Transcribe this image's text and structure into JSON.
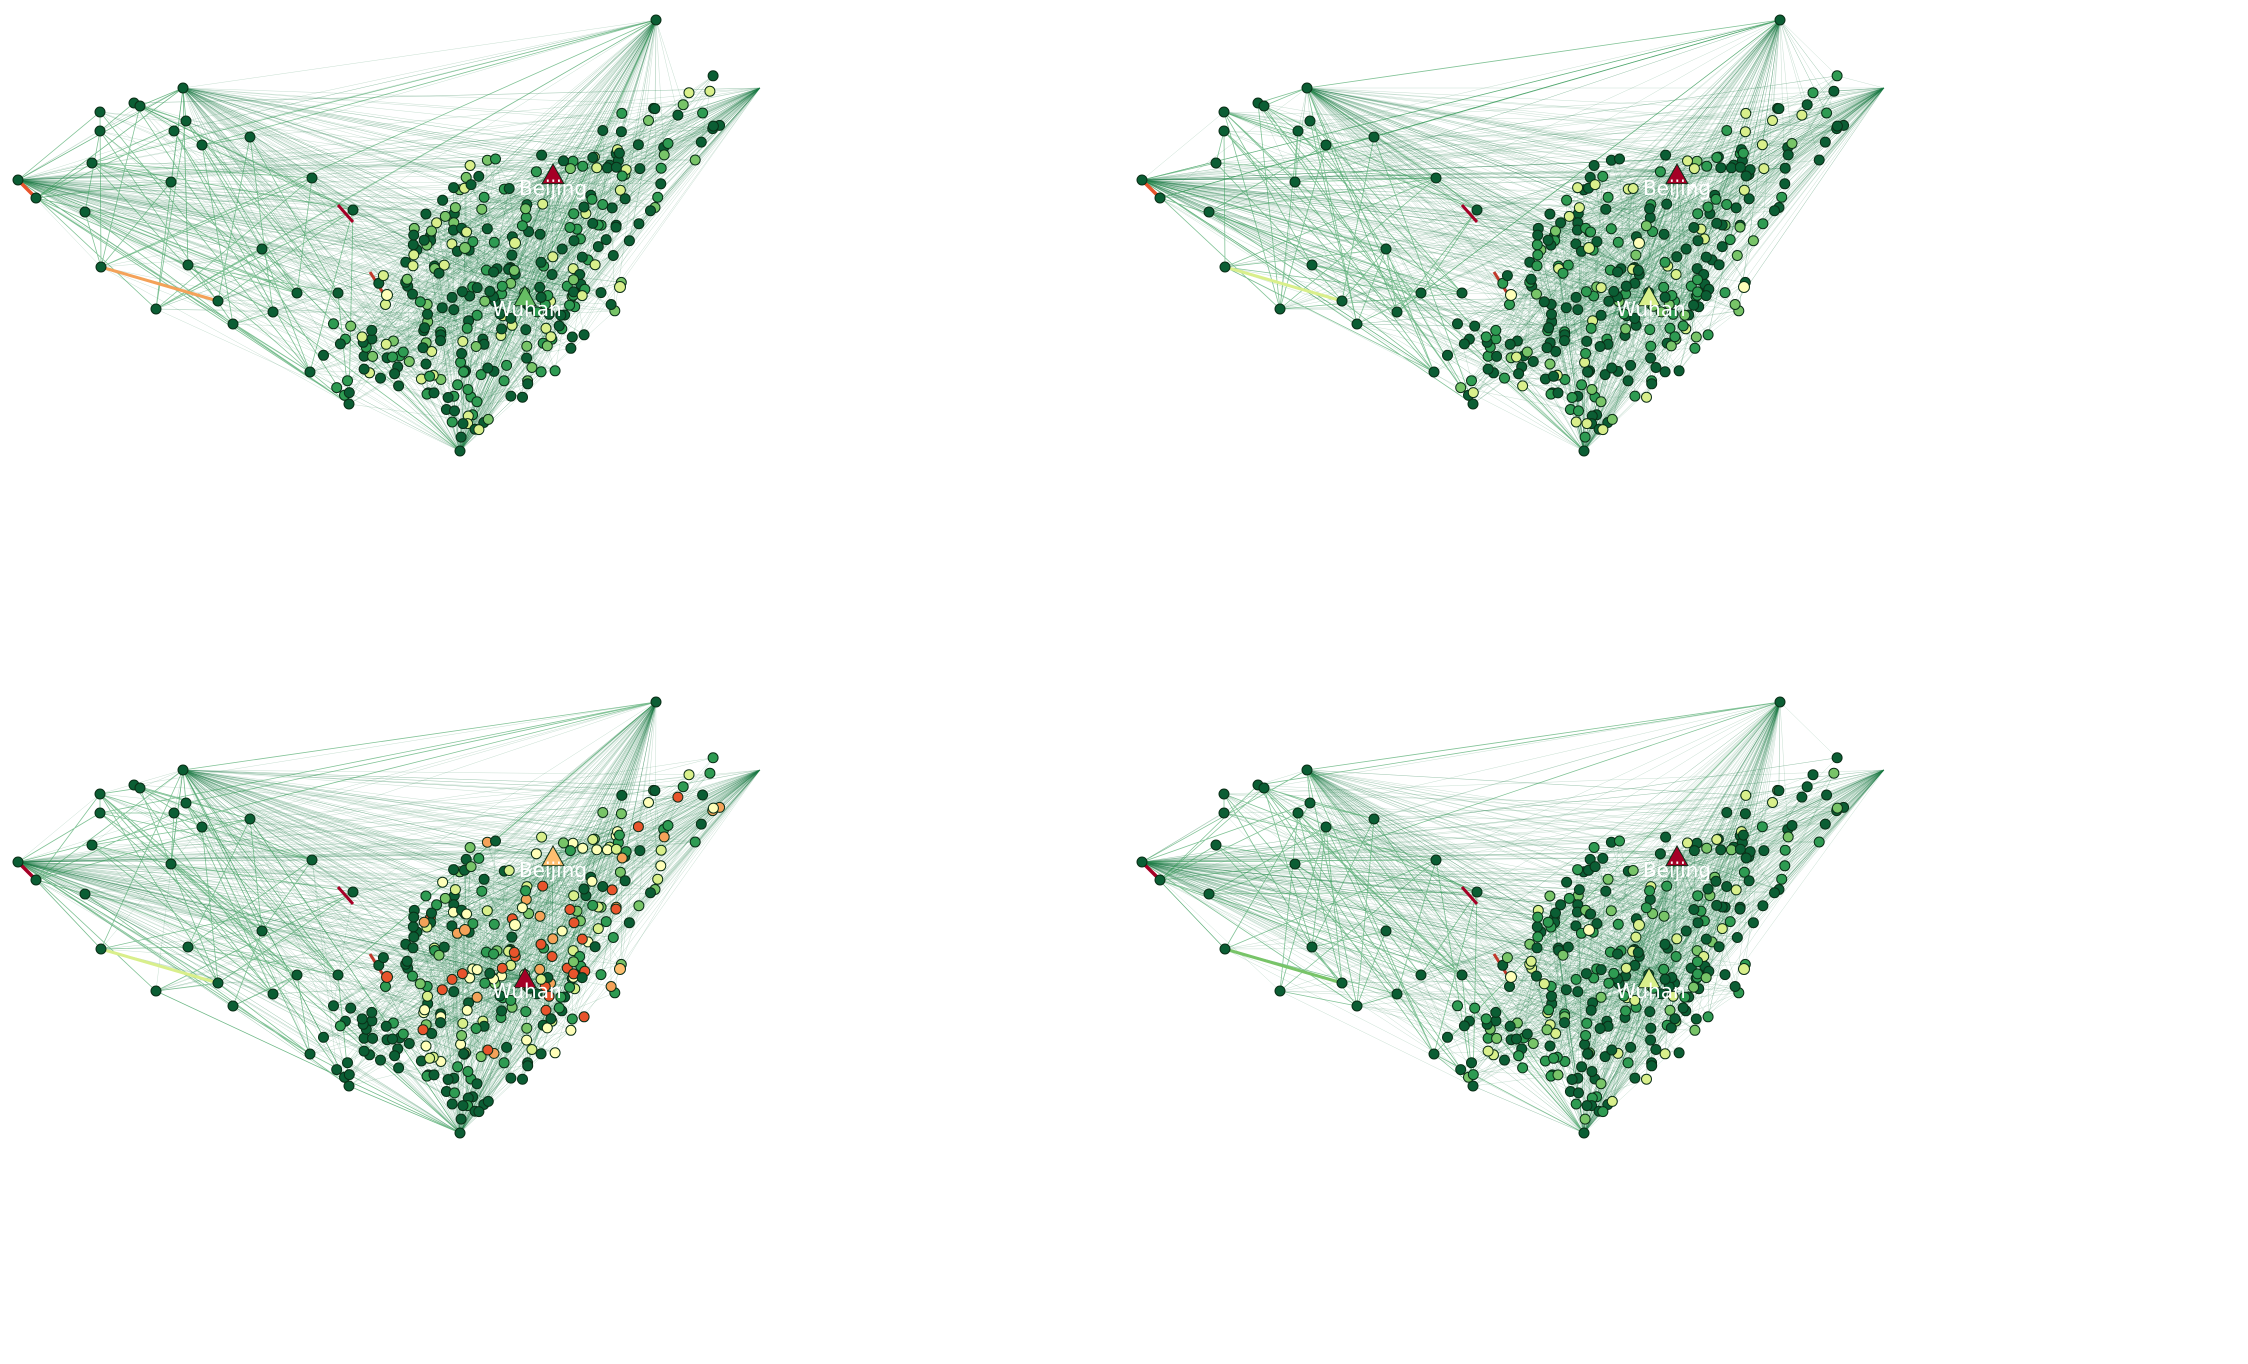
{
  "cities": [
    {
      "id": "beijing",
      "label": "Beijing"
    },
    {
      "id": "wuhan",
      "label": "Wuhan"
    }
  ],
  "colors": {
    "edge_main": "#1e7a45",
    "node_dark": "#0b5e34",
    "node_mid": "#2e9b52",
    "node_light": "#78c468",
    "node_pale": "#d9ef8b",
    "node_cream": "#fefeb8",
    "node_orange": "#f4a259",
    "node_red": "#e8542c",
    "node_deep_red": "#a50026",
    "node_stroke": "#0a2e17"
  },
  "panels": [
    {
      "id": "top-left",
      "beijing_marker_color": "#a50026",
      "wuhan_marker_color": "#66bd63",
      "highlight_nodes": [
        {
          "name": "node-a",
          "color": "#fefeb8"
        },
        {
          "name": "node-b",
          "color": "#d9ef8b"
        },
        {
          "name": "node-c",
          "color": "#78c468"
        },
        {
          "name": "node-d",
          "color": "#d9ef8b"
        }
      ],
      "strong_edges": [
        {
          "name": "west-edge-1",
          "color": "#f4a259"
        },
        {
          "name": "west-edge-2",
          "color": "#e8542c"
        }
      ]
    },
    {
      "id": "top-right",
      "beijing_marker_color": "#a50026",
      "wuhan_marker_color": "#d9ef8b",
      "highlight_nodes": [
        {
          "name": "node-a",
          "color": "#fefeb8"
        },
        {
          "name": "node-b",
          "color": "#fefeb8"
        },
        {
          "name": "node-c",
          "color": "#d9ef8b"
        },
        {
          "name": "node-d",
          "color": "#fefeb8"
        }
      ],
      "strong_edges": [
        {
          "name": "west-edge-1",
          "color": "#d9ef8b"
        },
        {
          "name": "west-edge-2",
          "color": "#e8542c"
        }
      ]
    },
    {
      "id": "bottom-left",
      "beijing_marker_color": "#fdbe6f",
      "wuhan_marker_color": "#a50026",
      "highlight_nodes": [
        {
          "name": "node-a",
          "color": "#e8542c"
        },
        {
          "name": "node-b",
          "color": "#fefeb8"
        },
        {
          "name": "node-c",
          "color": "#f4a259"
        },
        {
          "name": "node-d",
          "color": "#fdbe6f"
        }
      ],
      "strong_edges": [
        {
          "name": "west-edge-1",
          "color": "#d9ef8b"
        },
        {
          "name": "west-edge-2",
          "color": "#a50026"
        }
      ]
    },
    {
      "id": "bottom-right",
      "beijing_marker_color": "#a50026",
      "wuhan_marker_color": "#d9ef8b",
      "highlight_nodes": [
        {
          "name": "node-a",
          "color": "#fefeb8"
        },
        {
          "name": "node-b",
          "color": "#d9ef8b"
        },
        {
          "name": "node-c",
          "color": "#fefeb8"
        },
        {
          "name": "node-d",
          "color": "#d9ef8b"
        }
      ],
      "strong_edges": [
        {
          "name": "west-edge-1",
          "color": "#78c468"
        },
        {
          "name": "west-edge-2",
          "color": "#a50026"
        }
      ]
    }
  ]
}
